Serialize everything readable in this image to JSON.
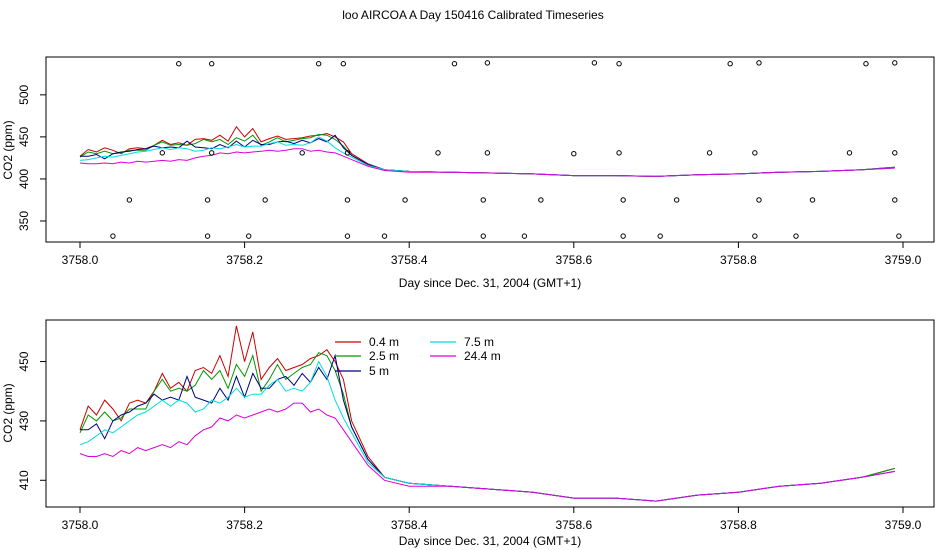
{
  "title": "loo AIRCOA A  Day 150416  Calibrated Timeseries",
  "colors": {
    "series_0_4": "#cc0000",
    "series_2_5": "#009900",
    "series_5": "#000080",
    "series_7_5": "#00dddd",
    "series_24_4": "#dd00dd",
    "axis": "#000000"
  },
  "chart_data": [
    {
      "type": "line",
      "xlabel": "Day since Dec. 31, 2004 (GMT+1)",
      "ylabel": "CO2 (ppm)",
      "xlim": [
        3758.0,
        3759.0
      ],
      "ylim": [
        325,
        545
      ],
      "xticks": [
        3758.0,
        3758.2,
        3758.4,
        3758.6,
        3758.8,
        3759.0
      ],
      "xtick_labels": [
        "3758.0",
        "3758.2",
        "3758.4",
        "3758.6",
        "3758.8",
        "3759.0"
      ],
      "yticks": [
        350,
        400,
        450,
        500
      ],
      "ytick_labels": [
        "350",
        "400",
        "450",
        "500"
      ],
      "grid": false,
      "flag_points": [
        {
          "x": 3758.12,
          "y": 537
        },
        {
          "x": 3758.16,
          "y": 537
        },
        {
          "x": 3758.29,
          "y": 537
        },
        {
          "x": 3758.32,
          "y": 537
        },
        {
          "x": 3758.455,
          "y": 537
        },
        {
          "x": 3758.495,
          "y": 538
        },
        {
          "x": 3758.625,
          "y": 538
        },
        {
          "x": 3758.655,
          "y": 537
        },
        {
          "x": 3758.79,
          "y": 537
        },
        {
          "x": 3758.825,
          "y": 538
        },
        {
          "x": 3758.955,
          "y": 537
        },
        {
          "x": 3758.99,
          "y": 538
        },
        {
          "x": 3758.1,
          "y": 431
        },
        {
          "x": 3758.16,
          "y": 431
        },
        {
          "x": 3758.27,
          "y": 431
        },
        {
          "x": 3758.325,
          "y": 431
        },
        {
          "x": 3758.435,
          "y": 431
        },
        {
          "x": 3758.495,
          "y": 431
        },
        {
          "x": 3758.6,
          "y": 430
        },
        {
          "x": 3758.655,
          "y": 431
        },
        {
          "x": 3758.765,
          "y": 431
        },
        {
          "x": 3758.82,
          "y": 431
        },
        {
          "x": 3758.935,
          "y": 431
        },
        {
          "x": 3758.99,
          "y": 431
        },
        {
          "x": 3758.06,
          "y": 375
        },
        {
          "x": 3758.155,
          "y": 375
        },
        {
          "x": 3758.225,
          "y": 375
        },
        {
          "x": 3758.325,
          "y": 375
        },
        {
          "x": 3758.395,
          "y": 375
        },
        {
          "x": 3758.49,
          "y": 375
        },
        {
          "x": 3758.56,
          "y": 375
        },
        {
          "x": 3758.66,
          "y": 375
        },
        {
          "x": 3758.725,
          "y": 375
        },
        {
          "x": 3758.825,
          "y": 375
        },
        {
          "x": 3758.89,
          "y": 375
        },
        {
          "x": 3758.99,
          "y": 375
        },
        {
          "x": 3758.04,
          "y": 332
        },
        {
          "x": 3758.155,
          "y": 332
        },
        {
          "x": 3758.205,
          "y": 332
        },
        {
          "x": 3758.325,
          "y": 332
        },
        {
          "x": 3758.37,
          "y": 332
        },
        {
          "x": 3758.49,
          "y": 332
        },
        {
          "x": 3758.54,
          "y": 332
        },
        {
          "x": 3758.66,
          "y": 332
        },
        {
          "x": 3758.705,
          "y": 332
        },
        {
          "x": 3758.82,
          "y": 332
        },
        {
          "x": 3758.87,
          "y": 332
        },
        {
          "x": 3758.995,
          "y": 332
        }
      ],
      "series": [
        {
          "key": "s04",
          "x": [
            3758.0,
            3758.01,
            3758.02,
            3758.03,
            3758.04,
            3758.05,
            3758.06,
            3758.07,
            3758.08,
            3758.09,
            3758.1,
            3758.11,
            3758.12,
            3758.13,
            3758.14,
            3758.15,
            3758.16,
            3758.17,
            3758.18,
            3758.19,
            3758.2,
            3758.21,
            3758.22,
            3758.23,
            3758.24,
            3758.25,
            3758.26,
            3758.27,
            3758.28,
            3758.29,
            3758.3,
            3758.31,
            3758.32,
            3758.33,
            3758.35,
            3758.37,
            3758.4,
            3758.45,
            3758.5,
            3758.55,
            3758.6,
            3758.65,
            3758.7,
            3758.75,
            3758.8,
            3758.85,
            3758.9,
            3758.95,
            3758.99
          ],
          "values": [
            427,
            435,
            432,
            437,
            434,
            430,
            436,
            437,
            436,
            440,
            446,
            441,
            443,
            440,
            447,
            448,
            446,
            452,
            445,
            462,
            450,
            460,
            444,
            448,
            451,
            447,
            448,
            449,
            451,
            452,
            454,
            450,
            444,
            430,
            418,
            411,
            409,
            408,
            407,
            406,
            404,
            404,
            403,
            405,
            406,
            408,
            409,
            411,
            414
          ]
        },
        {
          "key": "s25",
          "x": [
            3758.0,
            3758.01,
            3758.02,
            3758.03,
            3758.04,
            3758.05,
            3758.06,
            3758.07,
            3758.08,
            3758.09,
            3758.1,
            3758.11,
            3758.12,
            3758.13,
            3758.14,
            3758.15,
            3758.16,
            3758.17,
            3758.18,
            3758.19,
            3758.2,
            3758.21,
            3758.22,
            3758.23,
            3758.24,
            3758.25,
            3758.26,
            3758.27,
            3758.28,
            3758.29,
            3758.3,
            3758.31,
            3758.32,
            3758.33,
            3758.35,
            3758.37,
            3758.4,
            3758.45,
            3758.5,
            3758.55,
            3758.6,
            3758.65,
            3758.7,
            3758.75,
            3758.8,
            3758.85,
            3758.9,
            3758.95,
            3758.99
          ],
          "values": [
            426,
            432,
            430,
            433,
            430,
            431,
            434,
            434,
            434,
            440,
            444,
            440,
            441,
            440,
            442,
            447,
            444,
            447,
            441,
            449,
            445,
            452,
            440,
            444,
            449,
            444,
            446,
            448,
            449,
            453,
            452,
            447,
            439,
            428,
            417,
            411,
            409,
            408,
            407,
            406,
            404,
            404,
            403,
            405,
            406,
            408,
            409,
            411,
            414
          ]
        },
        {
          "key": "s5",
          "x": [
            3758.0,
            3758.01,
            3758.02,
            3758.03,
            3758.04,
            3758.05,
            3758.06,
            3758.07,
            3758.08,
            3758.09,
            3758.1,
            3758.11,
            3758.12,
            3758.13,
            3758.14,
            3758.15,
            3758.16,
            3758.17,
            3758.18,
            3758.19,
            3758.2,
            3758.21,
            3758.22,
            3758.23,
            3758.24,
            3758.25,
            3758.26,
            3758.27,
            3758.28,
            3758.29,
            3758.3,
            3758.31,
            3758.32,
            3758.33,
            3758.35,
            3758.37,
            3758.4,
            3758.45,
            3758.5,
            3758.55,
            3758.6,
            3758.65,
            3758.7,
            3758.75,
            3758.8,
            3758.85,
            3758.9,
            3758.95,
            3758.99
          ],
          "values": [
            427,
            427,
            429,
            424,
            430,
            432,
            433,
            435,
            436,
            439,
            437,
            438,
            437,
            445,
            438,
            437,
            436,
            441,
            437,
            445,
            438,
            446,
            441,
            441,
            444,
            445,
            442,
            446,
            443,
            448,
            444,
            452,
            437,
            428,
            417,
            411,
            409,
            408,
            407,
            406,
            404,
            404,
            403,
            405,
            406,
            408,
            409,
            411,
            413
          ]
        },
        {
          "key": "s75",
          "x": [
            3758.0,
            3758.01,
            3758.02,
            3758.03,
            3758.04,
            3758.05,
            3758.06,
            3758.07,
            3758.08,
            3758.09,
            3758.1,
            3758.11,
            3758.12,
            3758.13,
            3758.14,
            3758.15,
            3758.16,
            3758.17,
            3758.18,
            3758.19,
            3758.2,
            3758.21,
            3758.22,
            3758.23,
            3758.24,
            3758.25,
            3758.26,
            3758.27,
            3758.28,
            3758.29,
            3758.3,
            3758.31,
            3758.32,
            3758.33,
            3758.35,
            3758.37,
            3758.4,
            3758.45,
            3758.5,
            3758.55,
            3758.6,
            3758.65,
            3758.7,
            3758.75,
            3758.8,
            3758.85,
            3758.9,
            3758.95,
            3758.99
          ],
          "values": [
            422,
            423,
            425,
            427,
            426,
            428,
            430,
            432,
            433,
            435,
            437,
            435,
            437,
            436,
            433,
            434,
            437,
            436,
            438,
            441,
            438,
            439,
            439,
            442,
            444,
            440,
            441,
            440,
            443,
            450,
            445,
            437,
            431,
            426,
            416,
            411,
            409,
            408,
            407,
            406,
            404,
            404,
            403,
            405,
            406,
            408,
            409,
            411,
            413
          ]
        },
        {
          "key": "s244",
          "x": [
            3758.0,
            3758.01,
            3758.02,
            3758.03,
            3758.04,
            3758.05,
            3758.06,
            3758.07,
            3758.08,
            3758.09,
            3758.1,
            3758.11,
            3758.12,
            3758.13,
            3758.14,
            3758.15,
            3758.16,
            3758.17,
            3758.18,
            3758.19,
            3758.2,
            3758.21,
            3758.22,
            3758.23,
            3758.24,
            3758.25,
            3758.26,
            3758.27,
            3758.28,
            3758.29,
            3758.3,
            3758.31,
            3758.32,
            3758.33,
            3758.35,
            3758.37,
            3758.4,
            3758.45,
            3758.5,
            3758.55,
            3758.6,
            3758.65,
            3758.7,
            3758.75,
            3758.8,
            3758.85,
            3758.9,
            3758.95,
            3758.99
          ],
          "values": [
            419,
            418,
            418,
            419,
            418,
            420,
            419,
            421,
            420,
            421,
            422,
            421,
            423,
            422,
            425,
            427,
            428,
            431,
            430,
            432,
            431,
            432,
            433,
            434,
            433,
            434,
            436,
            436,
            433,
            434,
            432,
            431,
            427,
            423,
            415,
            410,
            408,
            408,
            407,
            406,
            404,
            404,
            403,
            405,
            406,
            408,
            409,
            411,
            413
          ]
        }
      ]
    },
    {
      "type": "line",
      "xlabel": "Day since Dec. 31, 2004 (GMT+1)",
      "ylabel": "CO2 (ppm)",
      "xlim": [
        3758.0,
        3759.0
      ],
      "ylim": [
        401,
        464
      ],
      "xticks": [
        3758.0,
        3758.2,
        3758.4,
        3758.6,
        3758.8,
        3759.0
      ],
      "xtick_labels": [
        "3758.0",
        "3758.2",
        "3758.4",
        "3758.6",
        "3758.8",
        "3759.0"
      ],
      "yticks": [
        410,
        430,
        450
      ],
      "ytick_labels": [
        "410",
        "430",
        "450"
      ],
      "grid": false,
      "legend": [
        {
          "key": "s04",
          "label": "0.4 m"
        },
        {
          "key": "s25",
          "label": "2.5 m"
        },
        {
          "key": "s5",
          "label": "5 m"
        },
        {
          "key": "s75",
          "label": "7.5 m"
        },
        {
          "key": "s244",
          "label": "24.4 m"
        }
      ],
      "legend_position": "top-center",
      "series_ref": "same as panel 1 series"
    }
  ]
}
